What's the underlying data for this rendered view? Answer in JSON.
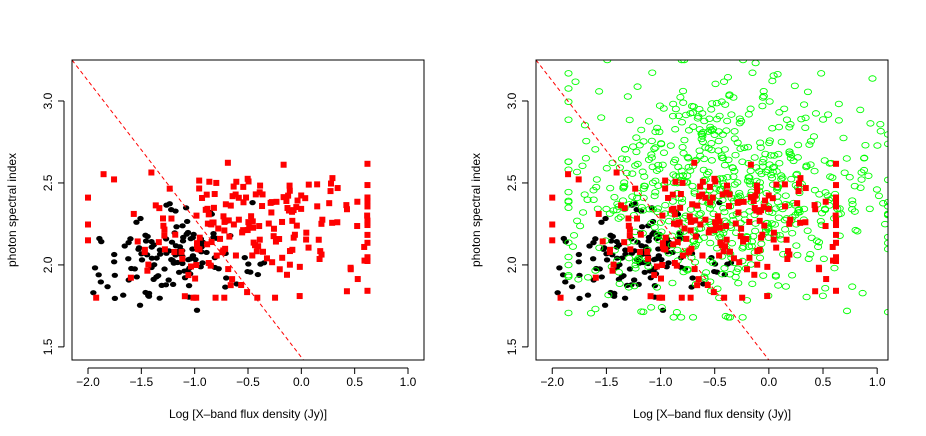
{
  "chart_data": [
    {
      "type": "scatter",
      "panel": "left",
      "xlabel": "Log [X–band flux density (Jy)]",
      "ylabel": "photon spectral index",
      "xlim": [
        -2.15,
        1.15
      ],
      "ylim": [
        1.42,
        3.25
      ],
      "xticks": [
        -2.0,
        -1.5,
        -1.0,
        -0.5,
        0.0,
        0.5,
        1.0
      ],
      "xtick_labels": [
        "−2.0",
        "−1.5",
        "−1.0",
        "−0.5",
        "0.0",
        "0.5",
        "1.0"
      ],
      "yticks": [
        1.5,
        2.0,
        2.5,
        3.0
      ],
      "ytick_labels": [
        "1.5",
        "2.0",
        "2.5",
        "3.0"
      ],
      "reference_line": {
        "style": "dashed",
        "color": "#ff0000",
        "points": [
          [
            -2.15,
            3.25
          ],
          [
            0.02,
            1.42
          ]
        ]
      },
      "series": [
        {
          "name": "black dots",
          "marker": "filled-ellipse",
          "color": "#000000",
          "n": 130,
          "x_range": [
            -1.95,
            -0.35
          ],
          "y_range": [
            1.72,
            2.38
          ],
          "x_center": -1.2,
          "y_center": 2.07
        },
        {
          "name": "red squares",
          "marker": "filled-square",
          "color": "#ff0000",
          "n": 200,
          "x_range": [
            -2.0,
            0.62
          ],
          "y_range": [
            1.8,
            2.69
          ],
          "x_center": -0.4,
          "y_center": 2.22
        }
      ]
    },
    {
      "type": "scatter",
      "panel": "right",
      "xlabel": "Log [X–band flux density (Jy)]",
      "ylabel": "photon spectral index",
      "xlim": [
        -2.15,
        1.1
      ],
      "ylim": [
        1.42,
        3.25
      ],
      "xticks": [
        -2.0,
        -1.5,
        -1.0,
        -0.5,
        0.0,
        0.5,
        1.0
      ],
      "xtick_labels": [
        "−2.0",
        "−1.5",
        "−1.0",
        "−0.5",
        "0.0",
        "0.5",
        "1.0"
      ],
      "yticks": [
        1.5,
        2.0,
        2.5,
        3.0
      ],
      "ytick_labels": [
        "1.5",
        "2.0",
        "2.5",
        "3.0"
      ],
      "reference_line": {
        "style": "dashed",
        "color": "#ff0000",
        "points": [
          [
            -2.15,
            3.25
          ],
          [
            0.0,
            1.42
          ]
        ]
      },
      "series": [
        {
          "name": "black dots",
          "marker": "filled-ellipse",
          "color": "#000000",
          "n": 130,
          "x_range": [
            -1.95,
            -0.35
          ],
          "y_range": [
            1.72,
            2.38
          ],
          "x_center": -1.2,
          "y_center": 2.07
        },
        {
          "name": "green circles",
          "marker": "open-ellipse",
          "color": "#00ff00",
          "n": 700,
          "x_range": [
            -1.85,
            1.1
          ],
          "y_range": [
            1.68,
            3.25
          ],
          "x_center": -0.45,
          "y_center": 2.45
        },
        {
          "name": "red squares",
          "marker": "filled-square",
          "color": "#ff0000",
          "n": 200,
          "x_range": [
            -2.0,
            0.62
          ],
          "y_range": [
            1.8,
            2.69
          ],
          "x_center": -0.4,
          "y_center": 2.22
        }
      ]
    }
  ]
}
